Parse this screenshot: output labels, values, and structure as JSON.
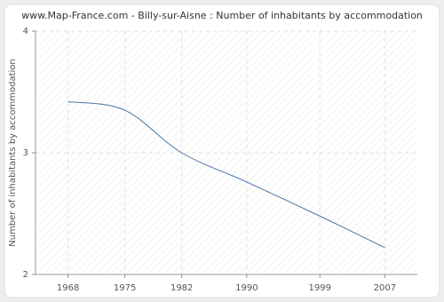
{
  "chart_data": {
    "type": "line",
    "title": "www.Map-France.com - Billy-sur-Aisne : Number of inhabitants by accommodation",
    "y_label": "Number of inhabitants by accommodation",
    "x": [
      1968,
      1975,
      1982,
      1990,
      1999,
      2007
    ],
    "series": [
      {
        "name": "Number of inhabitants by accommodation",
        "color": "#4a77a8",
        "values": [
          3.42,
          3.35,
          3.0,
          2.76,
          2.48,
          2.22
        ]
      }
    ],
    "xlim": [
      1964,
      2011
    ],
    "xticks": [
      1968,
      1975,
      1982,
      1990,
      1999,
      2007
    ],
    "ylim": [
      2,
      4
    ],
    "yticks": [
      2,
      3,
      4
    ],
    "grid": true
  }
}
